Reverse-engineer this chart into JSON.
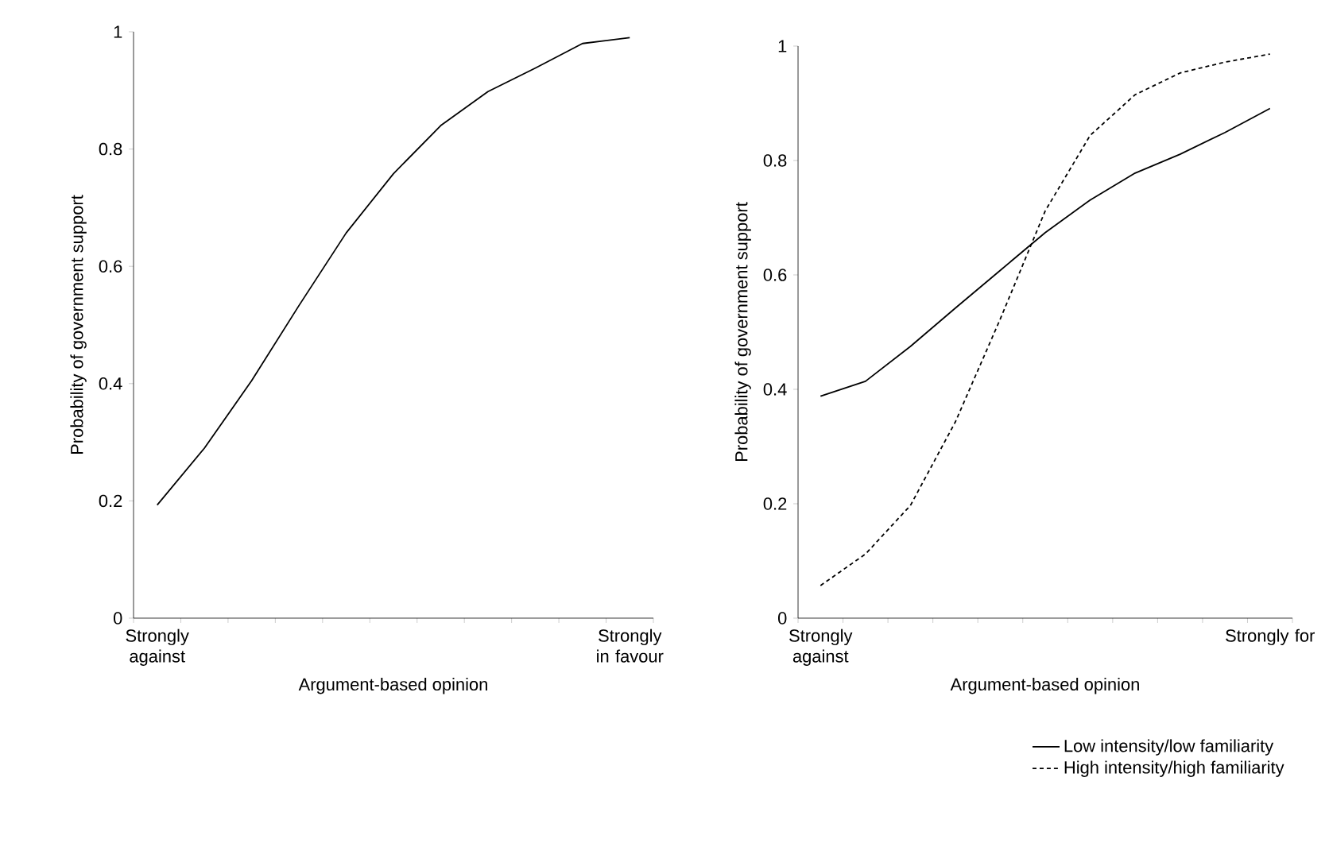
{
  "chart_data": [
    {
      "type": "line",
      "xlabel": "Argument-based opinion",
      "ylabel": "Probability of government support",
      "categories": [
        "Strongly against",
        null,
        null,
        null,
        null,
        null,
        null,
        null,
        null,
        null,
        "Strongly in favour"
      ],
      "ylim": [
        0,
        1
      ],
      "yticks": [
        0,
        0.2,
        0.4,
        0.6,
        0.8,
        1
      ],
      "series": [
        {
          "color": "#000000",
          "line_style": "solid",
          "values": [
            0.193,
            0.29,
            0.405,
            0.533,
            0.657,
            0.758,
            0.84,
            0.898,
            0.938,
            0.98,
            0.99
          ]
        }
      ],
      "legend": false,
      "marker": "none"
    },
    {
      "type": "line",
      "xlabel": "Argument-based opinion",
      "ylabel": "Probability of government support",
      "categories": [
        "Strongly against",
        null,
        null,
        null,
        null,
        null,
        null,
        null,
        null,
        null,
        "Strongly for"
      ],
      "ylim": [
        0,
        1
      ],
      "yticks": [
        0,
        0.2,
        0.4,
        0.6,
        0.8,
        1
      ],
      "series": [
        {
          "name": "Low intensity/low familiarity",
          "color": "#000000",
          "line_style": "solid",
          "values": [
            0.388,
            0.414,
            0.475,
            0.542,
            0.608,
            0.674,
            0.731,
            0.778,
            0.811,
            0.849,
            0.891
          ]
        },
        {
          "name": "High intensity/high familiarity",
          "color": "#000000",
          "line_style": "dashed",
          "values": [
            0.057,
            0.112,
            0.197,
            0.343,
            0.523,
            0.712,
            0.844,
            0.915,
            0.953,
            0.972,
            0.986
          ]
        }
      ],
      "legend": "bottom right",
      "marker": "none"
    }
  ]
}
